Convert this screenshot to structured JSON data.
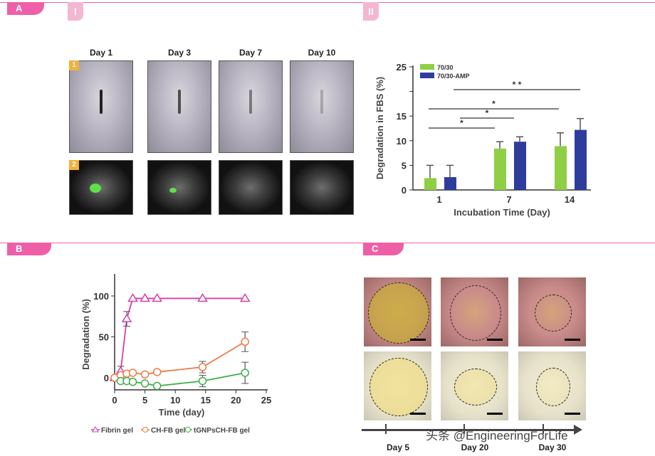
{
  "panels": {
    "A": "A",
    "A_I": "I",
    "A_II": "II",
    "B": "B",
    "C": "C"
  },
  "panel_a": {
    "days": [
      "Day 1",
      "Day 3",
      "Day 7",
      "Day 10"
    ],
    "row_labels": [
      "1",
      "2"
    ]
  },
  "panel_c": {
    "days": [
      "Day 5",
      "Day 20",
      "Day 30"
    ]
  },
  "watermark": "头条 @EngineeringForLife",
  "chart_data": [
    {
      "type": "bar",
      "ylabel": "Degradation in FBS (%)",
      "xlabel": "Incubation Time (Day)",
      "categories": [
        "1",
        "7",
        "14"
      ],
      "ylim": [
        0,
        25
      ],
      "yticks": [
        0,
        5,
        10,
        15,
        20,
        25
      ],
      "ytick_labels": [
        "0",
        "5",
        "10",
        "15",
        "",
        "25"
      ],
      "legend": "top-left",
      "series": [
        {
          "name": "70/30",
          "color": "#8fcf45",
          "values": [
            2.4,
            8.4,
            8.9
          ],
          "errors": [
            2.6,
            1.4,
            2.7
          ]
        },
        {
          "name": "70/30-AMP",
          "color": "#2e3d9c",
          "values": [
            2.6,
            9.8,
            12.2
          ],
          "errors": [
            2.4,
            1.0,
            2.3
          ]
        }
      ],
      "significance": [
        {
          "from": "1",
          "to": "7",
          "label": "*"
        },
        {
          "from": "1",
          "to": "7 (70/30-AMP)",
          "label": "*"
        },
        {
          "from": "1",
          "to": "14 (70/30)",
          "label": "*"
        },
        {
          "from": "1 (70/30-AMP)",
          "to": "14",
          "label": "* *"
        }
      ]
    },
    {
      "type": "line",
      "ylabel": "Degradation (%)",
      "xlabel": "Time (day)",
      "xlim": [
        0,
        25
      ],
      "ylim": [
        -15,
        120
      ],
      "xticks": [
        0,
        5,
        10,
        15,
        20,
        25
      ],
      "yticks": [
        0,
        50,
        100
      ],
      "legend": "bottom",
      "series": [
        {
          "name": "Fibrin gel",
          "color": "#d63fa8",
          "marker": "triangle",
          "x": [
            0,
            1,
            2,
            3,
            5,
            7,
            14.5,
            21.5
          ],
          "y": [
            0,
            8,
            72,
            97,
            97,
            97,
            97,
            97
          ],
          "errors": [
            0,
            6,
            9,
            0,
            0,
            0,
            0,
            0
          ]
        },
        {
          "name": "CH-FB gel",
          "color": "#ef7a45",
          "marker": "circle",
          "x": [
            0,
            1,
            2,
            3,
            5,
            7,
            14.5,
            21.5
          ],
          "y": [
            0,
            3,
            5,
            6,
            4,
            7,
            13,
            44
          ],
          "errors": [
            0,
            2,
            2,
            2,
            2,
            2,
            7,
            12
          ]
        },
        {
          "name": "tGNPsCH-FB gel",
          "color": "#3fae4a",
          "marker": "circle",
          "x": [
            1,
            2,
            3,
            5,
            7,
            14.5,
            21.5
          ],
          "y": [
            -4,
            -4,
            -5,
            -7,
            -10,
            -4,
            6
          ],
          "errors": [
            1,
            1,
            1,
            1,
            1,
            7,
            13
          ]
        }
      ]
    }
  ]
}
